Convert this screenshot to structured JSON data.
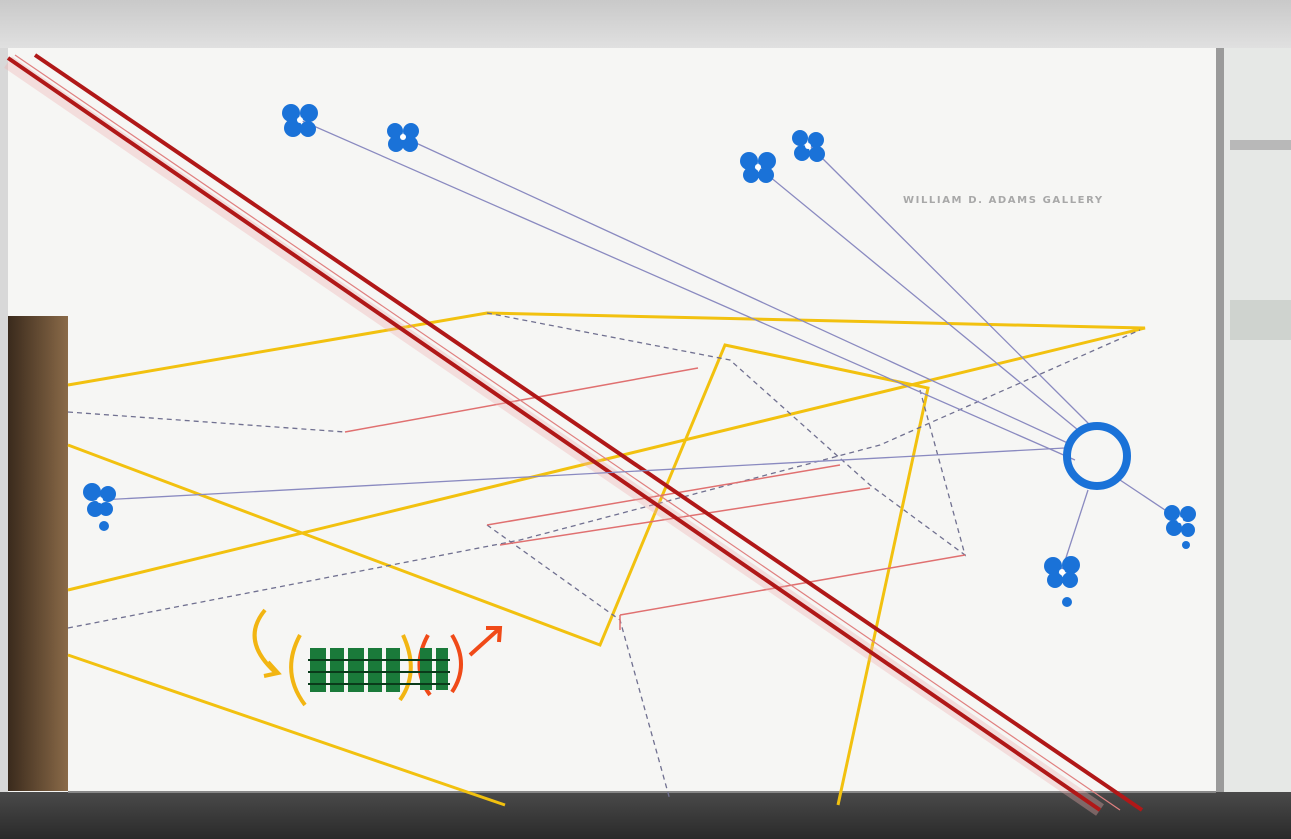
{
  "sign": {
    "text": "WILLIAM D. ADAMS GALLERY"
  }
}
